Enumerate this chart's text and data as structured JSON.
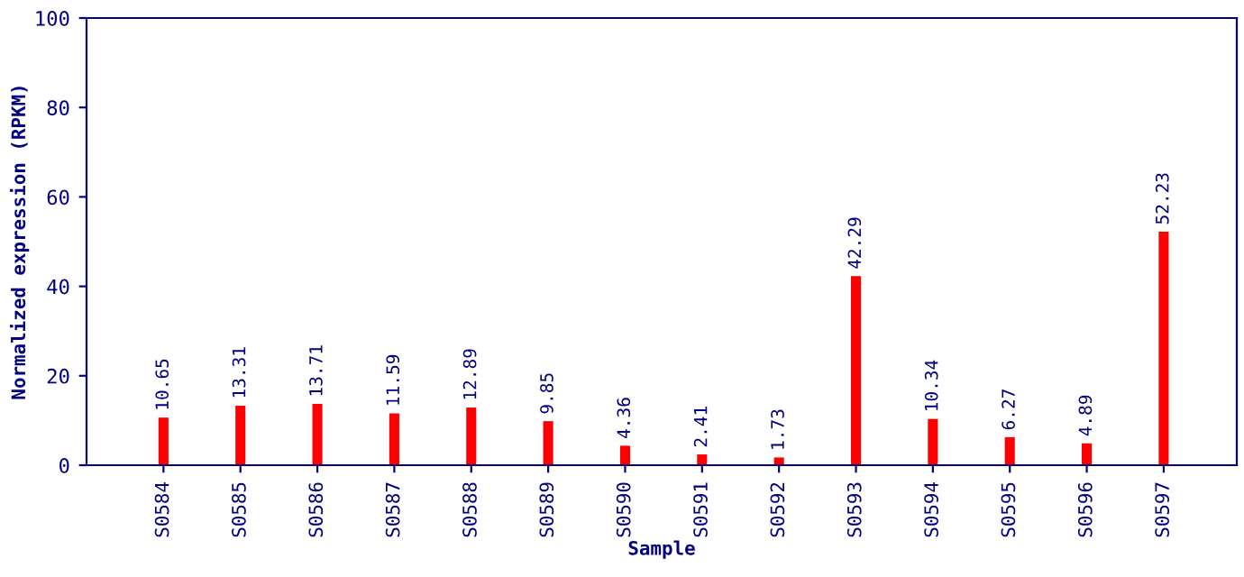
{
  "chart_data": {
    "type": "bar",
    "xlabel": "Sample",
    "ylabel": "Normalized expression (RPKM)",
    "categories": [
      "S0584",
      "S0585",
      "S0586",
      "S0587",
      "S0588",
      "S0589",
      "S0590",
      "S0591",
      "S0592",
      "S0593",
      "S0594",
      "S0595",
      "S0596",
      "S0597"
    ],
    "values": [
      10.65,
      13.31,
      13.71,
      11.59,
      12.89,
      9.85,
      4.36,
      2.41,
      1.73,
      42.29,
      10.34,
      6.27,
      4.89,
      52.23
    ],
    "color": "#ff0000",
    "ylim": [
      0,
      100
    ],
    "yticks": [
      0,
      20,
      40,
      60,
      80,
      100
    ],
    "data_labels": true,
    "grid": false,
    "legend": false
  }
}
